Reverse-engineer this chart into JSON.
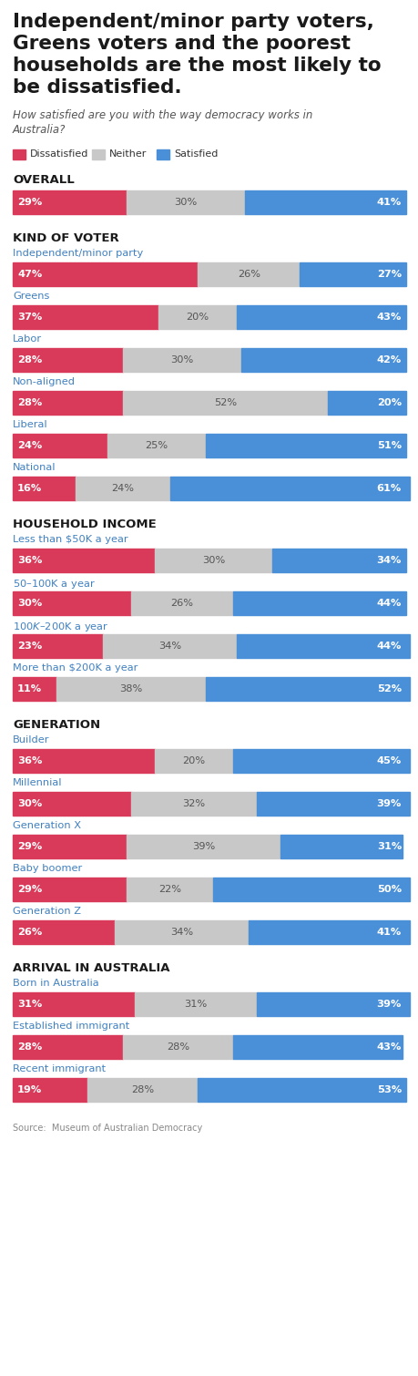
{
  "title_lines": [
    "Independent/minor party voters,",
    "Greens voters and the poorest",
    "households are the most likely to",
    "be dissatisfied."
  ],
  "subtitle": "How satisfied are you with the way democracy works in\nAustralia?",
  "source": "Source:  Museum of Australian Democracy",
  "colors": {
    "dissatisfied": "#d93a5a",
    "neither": "#c8c8c8",
    "satisfied": "#4a90d9",
    "text_dark": "#1a1a1a",
    "category_label": "#4080c0",
    "background": "#ffffff"
  },
  "sections": [
    {
      "header": "OVERALL",
      "rows": [
        {
          "label": "",
          "dissatisfied": 29,
          "neither": 30,
          "satisfied": 41
        }
      ]
    },
    {
      "header": "KIND OF VOTER",
      "rows": [
        {
          "label": "Independent/minor party",
          "dissatisfied": 47,
          "neither": 26,
          "satisfied": 27
        },
        {
          "label": "Greens",
          "dissatisfied": 37,
          "neither": 20,
          "satisfied": 43
        },
        {
          "label": "Labor",
          "dissatisfied": 28,
          "neither": 30,
          "satisfied": 42
        },
        {
          "label": "Non-aligned",
          "dissatisfied": 28,
          "neither": 52,
          "satisfied": 20
        },
        {
          "label": "Liberal",
          "dissatisfied": 24,
          "neither": 25,
          "satisfied": 51
        },
        {
          "label": "National",
          "dissatisfied": 16,
          "neither": 24,
          "satisfied": 61
        }
      ]
    },
    {
      "header": "HOUSEHOLD INCOME",
      "rows": [
        {
          "label": "Less than $50K a year",
          "dissatisfied": 36,
          "neither": 30,
          "satisfied": 34
        },
        {
          "label": "$50 – $100K a year",
          "dissatisfied": 30,
          "neither": 26,
          "satisfied": 44
        },
        {
          "label": "$100K – $200K a year",
          "dissatisfied": 23,
          "neither": 34,
          "satisfied": 44
        },
        {
          "label": "More than $200K a year",
          "dissatisfied": 11,
          "neither": 38,
          "satisfied": 52
        }
      ]
    },
    {
      "header": "GENERATION",
      "rows": [
        {
          "label": "Builder",
          "dissatisfied": 36,
          "neither": 20,
          "satisfied": 45
        },
        {
          "label": "Millennial",
          "dissatisfied": 30,
          "neither": 32,
          "satisfied": 39
        },
        {
          "label": "Generation X",
          "dissatisfied": 29,
          "neither": 39,
          "satisfied": 31
        },
        {
          "label": "Baby boomer",
          "dissatisfied": 29,
          "neither": 22,
          "satisfied": 50
        },
        {
          "label": "Generation Z",
          "dissatisfied": 26,
          "neither": 34,
          "satisfied": 41
        }
      ]
    },
    {
      "header": "ARRIVAL IN AUSTRALIA",
      "rows": [
        {
          "label": "Born in Australia",
          "dissatisfied": 31,
          "neither": 31,
          "satisfied": 39
        },
        {
          "label": "Established immigrant",
          "dissatisfied": 28,
          "neither": 28,
          "satisfied": 43
        },
        {
          "label": "Recent immigrant",
          "dissatisfied": 19,
          "neither": 28,
          "satisfied": 53
        }
      ]
    }
  ]
}
